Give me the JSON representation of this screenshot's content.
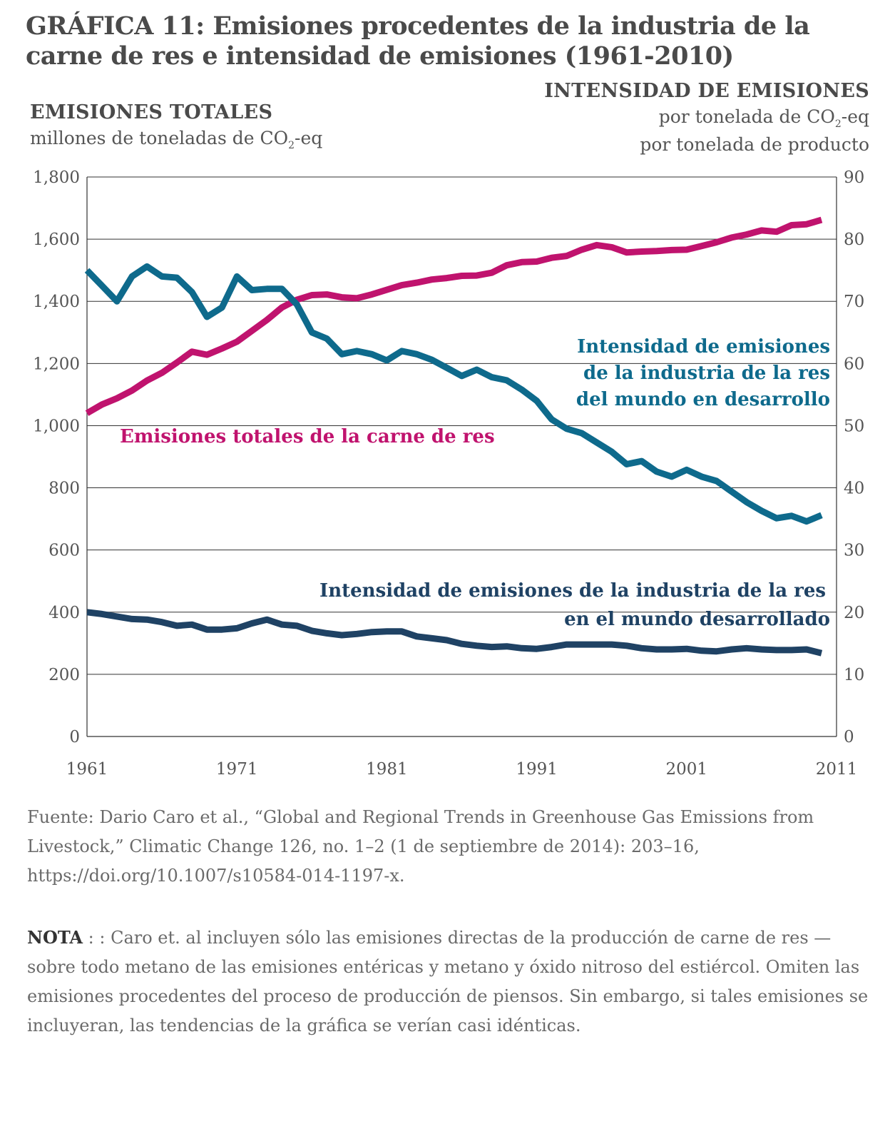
{
  "header": {
    "title_lead": "GRÁFICA 11:",
    "title_text": "Emisiones procedentes de la industria de la carne de res e intensidad de emisiones (1961-2010)"
  },
  "left_axis": {
    "caption": "EMISIONES TOTALES",
    "unit_prefix": "millones de toneladas de CO",
    "unit_sub": "2",
    "unit_suffix": "-eq"
  },
  "right_axis": {
    "caption": "INTENSIDAD DE EMISIONES",
    "unit_line1_prefix": "por tonelada de CO",
    "unit_line1_sub": "2",
    "unit_line1_suffix": "-eq",
    "unit_line2": "por tonelada de producto"
  },
  "colors": {
    "total": "#c0136e",
    "developing": "#0e6a8c",
    "developed": "#1f4264",
    "grid": "#333333",
    "tick_text": "#555555"
  },
  "chart_data": {
    "type": "line",
    "y_left_range": [
      0,
      1800
    ],
    "y_right_range": [
      0,
      90
    ],
    "x_range": [
      1961,
      2011
    ],
    "x_ticks": [
      "1961",
      "1971",
      "1981",
      "1991",
      "2001",
      "2011"
    ],
    "y_left_ticks": [
      "0",
      "200",
      "400",
      "600",
      "800",
      "1,000",
      "1,200",
      "1,400",
      "1,600",
      "1,800"
    ],
    "y_right_ticks": [
      "0",
      "10",
      "20",
      "30",
      "40",
      "50",
      "60",
      "70",
      "80",
      "90"
    ],
    "grid": true,
    "x": [
      1961,
      1962,
      1963,
      1964,
      1965,
      1966,
      1967,
      1968,
      1969,
      1970,
      1971,
      1972,
      1973,
      1974,
      1975,
      1976,
      1977,
      1978,
      1979,
      1980,
      1981,
      1982,
      1983,
      1984,
      1985,
      1986,
      1987,
      1988,
      1989,
      1990,
      1991,
      1992,
      1993,
      1994,
      1995,
      1996,
      1997,
      1998,
      1999,
      2000,
      2001,
      2002,
      2003,
      2004,
      2005,
      2006,
      2007,
      2008,
      2009,
      2010
    ],
    "series": [
      {
        "name": "Emisiones totales de la carne de res",
        "axis": "left",
        "label_lines": [
          "Emisiones totales de la carne de res"
        ],
        "values": [
          1040,
          1068,
          1088,
          1113,
          1145,
          1170,
          1203,
          1238,
          1228,
          1248,
          1270,
          1305,
          1340,
          1380,
          1405,
          1420,
          1422,
          1413,
          1410,
          1422,
          1437,
          1452,
          1460,
          1470,
          1475,
          1482,
          1483,
          1492,
          1516,
          1526,
          1528,
          1540,
          1546,
          1566,
          1581,
          1574,
          1557,
          1560,
          1562,
          1565,
          1566,
          1578,
          1590,
          1605,
          1615,
          1628,
          1624,
          1645,
          1648,
          1662
        ]
      },
      {
        "name": "Intensidad de emisiones de la industria de la res del mundo en desarrollo",
        "axis": "right",
        "label_lines": [
          "Intensidad de emisiones",
          "de la industria de la res",
          "del mundo en desarrollo"
        ],
        "values": [
          75,
          72.5,
          70,
          74,
          75.6,
          74,
          73.8,
          71.5,
          67.5,
          69,
          74,
          71.8,
          72,
          72,
          69.5,
          65,
          64,
          61.5,
          62,
          61.5,
          60.5,
          62,
          61.5,
          60.6,
          59.3,
          58,
          59,
          57.8,
          57.3,
          55.8,
          54,
          51,
          49.5,
          48.8,
          47.3,
          45.8,
          43.8,
          44.3,
          42.6,
          41.8,
          42.9,
          41.8,
          41.1,
          39.4,
          37.7,
          36.3,
          35.1,
          35.5,
          34.6,
          35.6
        ]
      },
      {
        "name": "Intensidad de emisiones de la industria de la res en el mundo desarrollado",
        "axis": "right",
        "label_lines": [
          "Intensidad de emisiones de la industria de la res",
          "en el mundo desarrollado"
        ],
        "values": [
          20,
          19.7,
          19.3,
          18.9,
          18.8,
          18.4,
          17.8,
          18,
          17.2,
          17.2,
          17.4,
          18.2,
          18.8,
          18,
          17.8,
          17,
          16.6,
          16.3,
          16.5,
          16.8,
          16.9,
          16.9,
          16.1,
          15.8,
          15.5,
          14.9,
          14.6,
          14.4,
          14.5,
          14.2,
          14.1,
          14.4,
          14.8,
          14.8,
          14.8,
          14.8,
          14.6,
          14.2,
          14,
          14,
          14.1,
          13.8,
          13.7,
          14,
          14.2,
          14,
          13.9,
          13.9,
          14,
          13.4
        ]
      }
    ]
  },
  "footer": {
    "source": "Fuente: Dario Caro et al., “Global and Regional Trends in Greenhouse Gas Emissions from Livestock,” Climatic Change 126, no. 1–2 (1 de septiembre de 2014): 203–16, https://doi.org/10.1007/s10584-014-1197-x.",
    "note_label": "NOTA",
    "note_text": " : : Caro et. al incluyen sólo las emisiones directas de la producción de carne de res —sobre todo metano de las emisiones entéricas y metano y óxido nitroso del estiércol. Omiten las emisiones procedentes del proceso de producción de piensos. Sin embargo, si tales emisiones se incluyeran, las tendencias de la gráfica se verían casi idénticas."
  }
}
